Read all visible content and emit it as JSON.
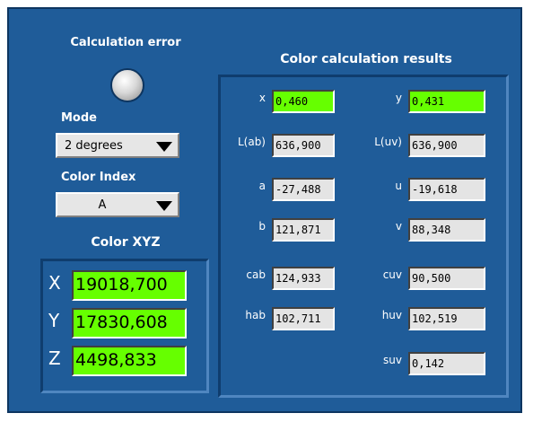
{
  "left": {
    "title": "Calculation error",
    "mode_label": "Mode",
    "mode_value": "2 degrees",
    "index_label": "Color Index",
    "index_value": "A",
    "xyz_title": "Color XYZ",
    "xyz": [
      {
        "label": "X",
        "value": "19018,700"
      },
      {
        "label": "Y",
        "value": "17830,608"
      },
      {
        "label": "Z",
        "value": "4498,833"
      }
    ]
  },
  "results": {
    "title": "Color calculation results",
    "rows": [
      [
        {
          "label": "x",
          "value": "0,460"
        },
        {
          "label": "y",
          "value": "0,431"
        }
      ],
      [
        {
          "label": "L(ab)",
          "value": "636,900"
        },
        {
          "label": "L(uv)",
          "value": "636,900"
        }
      ],
      [
        {
          "label": "a",
          "value": "-27,488"
        },
        {
          "label": "u",
          "value": "-19,618"
        }
      ],
      [
        {
          "label": "b",
          "value": "121,871"
        },
        {
          "label": "v",
          "value": "88,348"
        }
      ],
      [
        {
          "label": "cab",
          "value": "124,933"
        },
        {
          "label": "cuv",
          "value": "90,500"
        }
      ],
      [
        {
          "label": "hab",
          "value": "102,711"
        },
        {
          "label": "huv",
          "value": "102,519"
        }
      ],
      [
        {
          "label": "suv",
          "value": "0,142"
        }
      ]
    ]
  }
}
